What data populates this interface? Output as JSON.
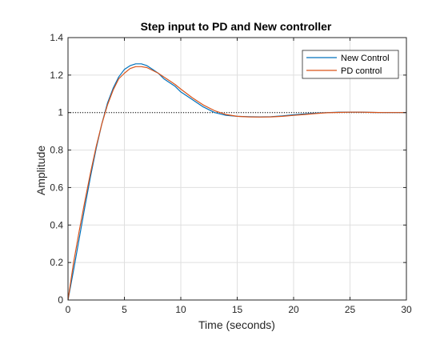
{
  "chart_data": {
    "type": "line",
    "title": "Step input to PD and New controller",
    "xlabel": "Time (seconds)",
    "ylabel": "Amplitude",
    "xlim": [
      0,
      30
    ],
    "ylim": [
      0,
      1.4
    ],
    "xticks": [
      0,
      5,
      10,
      15,
      20,
      25,
      30
    ],
    "yticks": [
      0,
      0.2,
      0.4,
      0.6,
      0.8,
      1,
      1.2,
      1.4
    ],
    "xtick_labels": [
      "0",
      "5",
      "10",
      "15",
      "20",
      "25",
      "30"
    ],
    "ytick_labels": [
      "0",
      "0.2",
      "0.4",
      "0.6",
      "0.8",
      "1",
      "1.2",
      "1.4"
    ],
    "grid": true,
    "legend_position": "top-right",
    "reference_line": {
      "y": 1,
      "style": "dotted",
      "color": "#000000"
    },
    "series": [
      {
        "name": "New Control",
        "color": "#0072BD",
        "x": [
          0,
          0.5,
          1,
          1.5,
          2,
          2.5,
          3,
          3.5,
          4,
          4.5,
          5,
          5.5,
          6,
          6.5,
          7,
          7.5,
          8,
          8.5,
          9,
          9.5,
          10,
          11,
          12,
          13,
          14,
          15,
          16,
          17,
          18,
          19,
          20,
          21,
          22,
          23,
          24,
          25,
          26,
          27,
          28,
          29,
          30
        ],
        "y": [
          0,
          0.16,
          0.33,
          0.5,
          0.66,
          0.81,
          0.94,
          1.05,
          1.13,
          1.19,
          1.23,
          1.25,
          1.26,
          1.26,
          1.25,
          1.23,
          1.21,
          1.18,
          1.16,
          1.14,
          1.11,
          1.07,
          1.03,
          1.0,
          0.985,
          0.98,
          0.978,
          0.977,
          0.978,
          0.982,
          0.988,
          0.993,
          0.997,
          1.0,
          1.002,
          1.002,
          1.002,
          1.001,
          1.0,
          1.0,
          1.0
        ]
      },
      {
        "name": "PD control",
        "color": "#D95319",
        "x": [
          0,
          0.5,
          1,
          1.5,
          2,
          2.5,
          3,
          3.5,
          4,
          4.5,
          5,
          5.5,
          6,
          6.5,
          7,
          7.5,
          8,
          8.5,
          9,
          9.5,
          10,
          11,
          12,
          13,
          14,
          15,
          16,
          17,
          18,
          19,
          20,
          21,
          22,
          23,
          24,
          25,
          26,
          27,
          28,
          29,
          30
        ],
        "y": [
          0,
          0.2,
          0.37,
          0.53,
          0.68,
          0.82,
          0.94,
          1.04,
          1.12,
          1.18,
          1.21,
          1.235,
          1.245,
          1.245,
          1.24,
          1.225,
          1.21,
          1.19,
          1.17,
          1.15,
          1.125,
          1.08,
          1.04,
          1.01,
          0.99,
          0.98,
          0.977,
          0.976,
          0.977,
          0.98,
          0.985,
          0.99,
          0.995,
          0.999,
          1.001,
          1.002,
          1.002,
          1.001,
          1.0,
          1.0,
          1.0
        ]
      }
    ]
  }
}
